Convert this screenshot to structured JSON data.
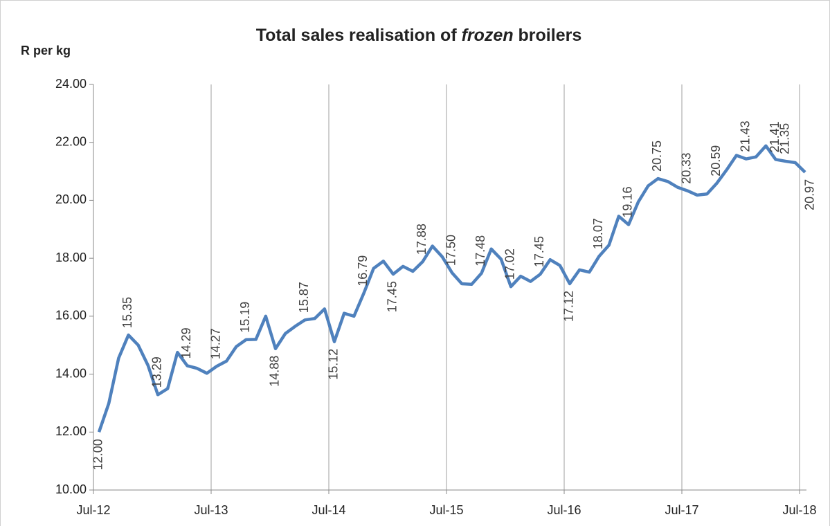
{
  "chart_data": {
    "type": "line",
    "title": [
      "Total sales realisation of ",
      "frozen",
      " broilers"
    ],
    "y_label": "R per kg",
    "categories": [
      "Jul-12",
      null,
      null,
      null,
      null,
      null,
      null,
      null,
      null,
      null,
      null,
      null,
      "Jul-13",
      null,
      null,
      null,
      null,
      null,
      null,
      null,
      null,
      null,
      null,
      null,
      "Jul-14",
      null,
      null,
      null,
      null,
      null,
      null,
      null,
      null,
      null,
      null,
      null,
      "Jul-15",
      null,
      null,
      null,
      null,
      null,
      null,
      null,
      null,
      null,
      null,
      null,
      "Jul-16",
      null,
      null,
      null,
      null,
      null,
      null,
      null,
      null,
      null,
      null,
      null,
      "Jul-17",
      null,
      null,
      null,
      null,
      null,
      null,
      null,
      null,
      null,
      null,
      null,
      "Jul-18"
    ],
    "series": [
      {
        "name": "Frozen broilers",
        "color": "#4f81bd",
        "values": [
          12.0,
          12.99,
          14.55,
          15.35,
          15.0,
          14.3,
          13.29,
          13.5,
          14.75,
          14.29,
          14.2,
          14.03,
          14.27,
          14.45,
          14.95,
          15.19,
          15.2,
          16.0,
          14.88,
          15.4,
          15.65,
          15.87,
          15.92,
          16.25,
          15.12,
          16.1,
          16.0,
          16.79,
          17.65,
          17.9,
          17.45,
          17.72,
          17.55,
          17.88,
          18.42,
          18.05,
          17.5,
          17.12,
          17.1,
          17.48,
          18.32,
          17.97,
          17.02,
          17.38,
          17.2,
          17.45,
          17.95,
          17.75,
          17.12,
          17.6,
          17.52,
          18.07,
          18.45,
          19.45,
          19.16,
          19.95,
          20.5,
          20.75,
          20.65,
          20.45,
          20.33,
          20.18,
          20.22,
          20.59,
          21.05,
          21.55,
          21.43,
          21.5,
          21.88,
          21.41,
          21.35,
          21.3,
          20.97
        ],
        "value_labels": [
          "12.00",
          null,
          null,
          "15.35",
          null,
          null,
          "13.29",
          null,
          null,
          "14.29",
          null,
          null,
          "14.27",
          null,
          null,
          "15.19",
          null,
          null,
          "14.88",
          null,
          null,
          "15.87",
          null,
          null,
          "15.12",
          null,
          null,
          "16.79",
          null,
          null,
          "17.45",
          null,
          null,
          "17.88",
          null,
          null,
          "17.50",
          null,
          null,
          "17.48",
          null,
          null,
          "17.02",
          null,
          null,
          "17.45",
          null,
          null,
          "17.12",
          null,
          null,
          "18.07",
          null,
          null,
          "19.16",
          null,
          null,
          "20.75",
          null,
          null,
          "20.33",
          null,
          null,
          "20.59",
          null,
          null,
          "21.43",
          null,
          null,
          "21.41",
          "21.35",
          null,
          "20.97"
        ]
      }
    ],
    "ylim": [
      10,
      24
    ],
    "yticks": [
      {
        "value": 10,
        "label": "10.00"
      },
      {
        "value": 12,
        "label": "12.00"
      },
      {
        "value": 14,
        "label": "14.00"
      },
      {
        "value": 16,
        "label": "16.00"
      },
      {
        "value": 18,
        "label": "18.00"
      },
      {
        "value": 20,
        "label": "20.00"
      },
      {
        "value": 22,
        "label": "22.00"
      },
      {
        "value": 24,
        "label": "24.00"
      }
    ],
    "grid": true
  }
}
